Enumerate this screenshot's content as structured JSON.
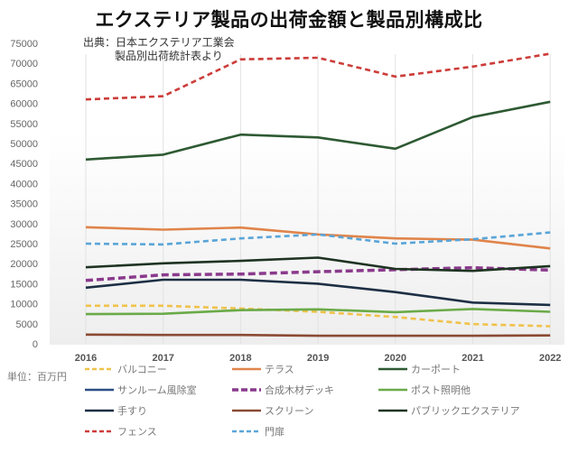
{
  "chart_data": {
    "type": "line",
    "title": "エクステリア製品の出荷金額と製品別構成比",
    "source_line1": "出典：日本エクステリア工業会",
    "source_line2": "製品別出荷統計表より",
    "unit_label": "単位：百万円",
    "xlabel": "",
    "ylabel": "",
    "x": [
      "2016",
      "2017",
      "2018",
      "2019",
      "2020",
      "2021",
      "2022"
    ],
    "ylim": [
      0,
      75000
    ],
    "yticks": [
      0,
      5000,
      10000,
      15000,
      20000,
      25000,
      30000,
      35000,
      40000,
      45000,
      50000,
      55000,
      60000,
      65000,
      70000,
      75000
    ],
    "grid": "vertical",
    "legend_position": "bottom",
    "series": [
      {
        "name": "バルコニー",
        "color": "#f0c24a",
        "dash": "dashed",
        "values": [
          9500,
          9500,
          8800,
          8000,
          6700,
          4900,
          4400
        ]
      },
      {
        "name": "テラス",
        "color": "#e0844a",
        "dash": "solid",
        "values": [
          29100,
          28500,
          29000,
          27300,
          26300,
          26000,
          23800
        ]
      },
      {
        "name": "カーポート",
        "color": "#2e5a33",
        "dash": "solid",
        "values": [
          46000,
          47200,
          52200,
          51500,
          48700,
          56600,
          60400
        ]
      },
      {
        "name": "サンルーム風除室",
        "color": "#2d4f86",
        "dash": "solid",
        "values": [
          null,
          null,
          null,
          null,
          null,
          null,
          null
        ]
      },
      {
        "name": "合成木材デッキ",
        "color": "#8a3a8c",
        "dash": "dashed-thick",
        "values": [
          15800,
          17200,
          17400,
          18000,
          18500,
          19000,
          18400
        ]
      },
      {
        "name": "ポスト照明他",
        "color": "#6aaa48",
        "dash": "solid",
        "values": [
          7400,
          7500,
          8400,
          8600,
          7900,
          8700,
          8000
        ]
      },
      {
        "name": "手すり",
        "color": "#1d2f44",
        "dash": "solid",
        "values": [
          14000,
          16000,
          16000,
          15000,
          12900,
          10300,
          9700
        ]
      },
      {
        "name": "スクリーン",
        "color": "#8a4a33",
        "dash": "solid",
        "values": [
          2300,
          2200,
          2200,
          2000,
          2000,
          2000,
          2100
        ]
      },
      {
        "name": "パブリックエクステリア",
        "color": "#1e3322",
        "dash": "solid",
        "values": [
          19100,
          20100,
          20700,
          21500,
          18700,
          18200,
          19400
        ]
      },
      {
        "name": "フェンス",
        "color": "#cc3d3a",
        "dash": "dashed",
        "values": [
          61000,
          61800,
          71000,
          71400,
          66700,
          69200,
          72400
        ]
      },
      {
        "name": "門扉",
        "color": "#5aa5d8",
        "dash": "dashed",
        "values": [
          25000,
          24800,
          26300,
          27300,
          25000,
          26100,
          27800
        ]
      }
    ]
  }
}
